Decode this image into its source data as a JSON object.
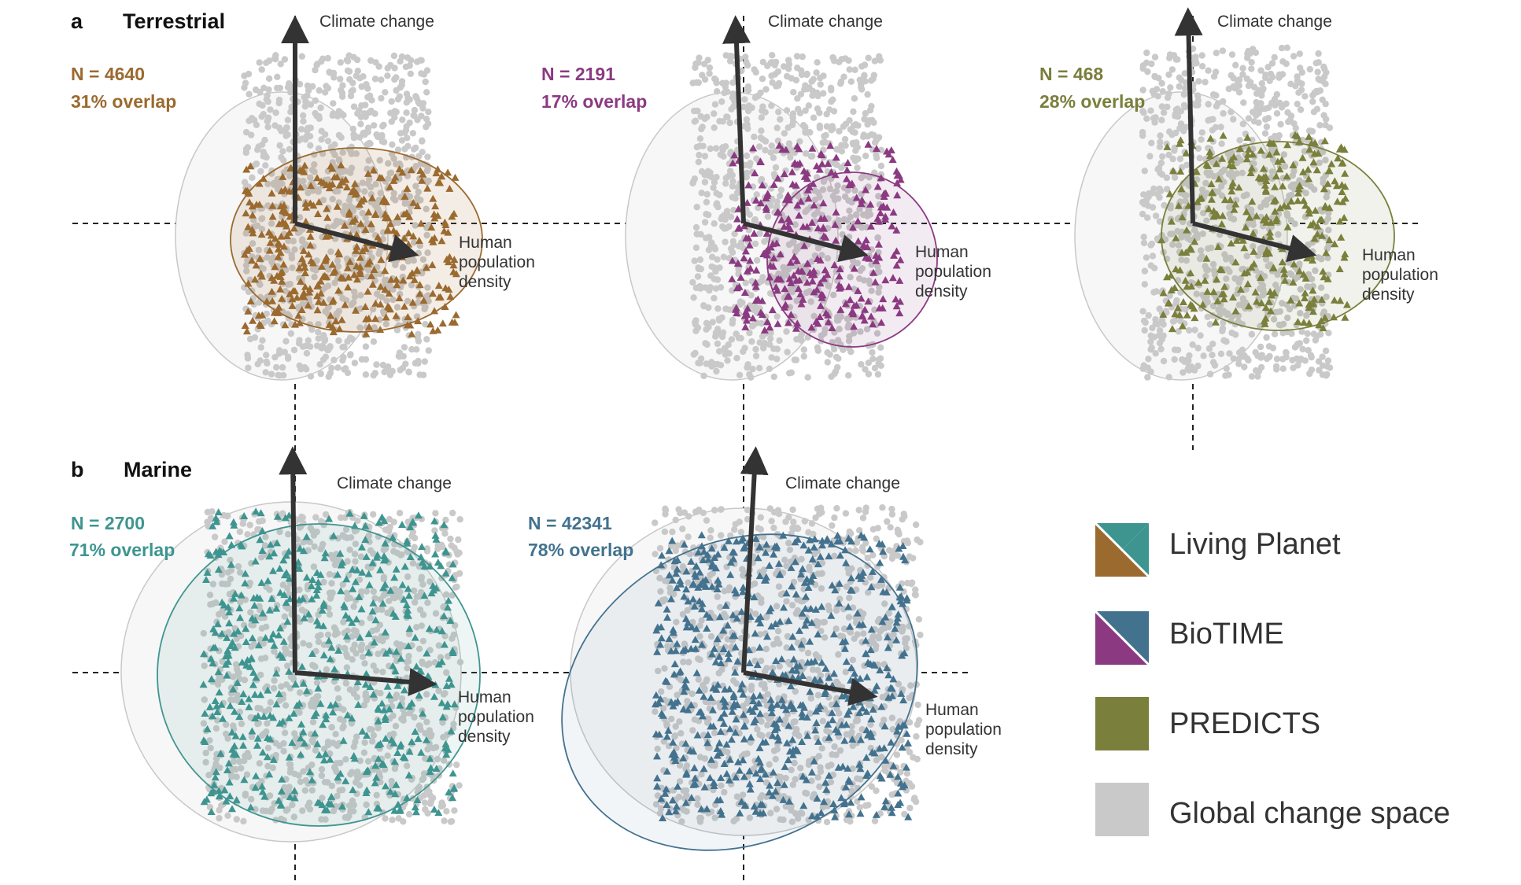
{
  "panels": [
    {
      "letter": "a",
      "title": "Terrestrial"
    },
    {
      "letter": "b",
      "title": "Marine"
    }
  ],
  "axis_labels": {
    "vertical": "Climate change",
    "horizontal": [
      "Human",
      "population",
      "density"
    ]
  },
  "colors": {
    "living_planet_terrestrial": "#9b6a2f",
    "living_planet_marine": "#3e9590",
    "biotime_terrestrial": "#8b3a82",
    "biotime_marine": "#43728f",
    "predicts": "#7a7f3c",
    "global": "#c9c9c9"
  },
  "legend": [
    {
      "label": "Living Planet",
      "swatch": "split",
      "colors": [
        "#9b6a2f",
        "#3e9590"
      ]
    },
    {
      "label": "BioTIME",
      "swatch": "split",
      "colors": [
        "#8b3a82",
        "#43728f"
      ]
    },
    {
      "label": "PREDICTS",
      "swatch": "solid",
      "colors": [
        "#7a7f3c"
      ]
    },
    {
      "label": "Global change space",
      "swatch": "solid",
      "colors": [
        "#c9c9c9"
      ]
    }
  ],
  "chart_data": [
    {
      "type": "scatter",
      "panel": "a",
      "title": "Terrestrial",
      "dataset": "Living Planet",
      "color": "#9b6a2f",
      "n_label": "N = 4640",
      "overlap_label": "31% overlap",
      "n": 4640,
      "overlap_percent": 31,
      "axes": {
        "x": "Human population density",
        "y": "Climate change"
      }
    },
    {
      "type": "scatter",
      "panel": "a",
      "title": "Terrestrial",
      "dataset": "BioTIME",
      "color": "#8b3a82",
      "n_label": "N = 2191",
      "overlap_label": "17% overlap",
      "n": 2191,
      "overlap_percent": 17,
      "axes": {
        "x": "Human population density",
        "y": "Climate change"
      }
    },
    {
      "type": "scatter",
      "panel": "a",
      "title": "Terrestrial",
      "dataset": "PREDICTS",
      "color": "#7a7f3c",
      "n_label": "N = 468",
      "overlap_label": "28% overlap",
      "n": 468,
      "overlap_percent": 28,
      "axes": {
        "x": "Human population density",
        "y": "Climate change"
      }
    },
    {
      "type": "scatter",
      "panel": "b",
      "title": "Marine",
      "dataset": "Living Planet",
      "color": "#3e9590",
      "n_label": "N = 2700",
      "overlap_label": "71% overlap",
      "n": 2700,
      "overlap_percent": 71,
      "axes": {
        "x": "Human population density",
        "y": "Climate change"
      }
    },
    {
      "type": "scatter",
      "panel": "b",
      "title": "Marine",
      "dataset": "BioTIME",
      "color": "#43728f",
      "n_label": "N = 42341",
      "overlap_label": "78% overlap",
      "n": 42341,
      "overlap_percent": 78,
      "axes": {
        "x": "Human population density",
        "y": "Climate change"
      }
    }
  ]
}
